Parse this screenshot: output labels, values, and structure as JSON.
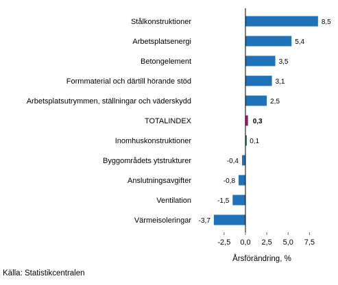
{
  "chart_data": {
    "type": "bar",
    "orientation": "horizontal",
    "categories": [
      "Stålkonstruktioner",
      "Arbetsplatsenergi",
      "Betongelement",
      "Formmaterial och därtill hörande stöd",
      "Arbetsplatsutrymmen, ställningar och väderskydd",
      "TOTALINDEX",
      "Inomhuskonstruktioner",
      "Byggområdets ytstrukturer",
      "Anslutningsavgifter",
      "Ventilation",
      "Värmeisoleringar"
    ],
    "values": [
      8.5,
      5.4,
      3.5,
      3.1,
      2.5,
      0.3,
      0.1,
      -0.4,
      -0.8,
      -1.5,
      -3.7
    ],
    "value_labels": [
      "8,5",
      "5,4",
      "3,5",
      "3,1",
      "2,5",
      "0,3",
      "0,1",
      "-0,4",
      "-0,8",
      "-1,5",
      "-3,7"
    ],
    "highlight_category": "TOTALINDEX",
    "xlabel": "Årsförändring, %",
    "xticks": [
      -2.5,
      0,
      2.5,
      5,
      7.5
    ],
    "xtick_labels": [
      "-2,5",
      "0,0",
      "2,5",
      "5,0",
      "7,5"
    ],
    "xlim": [
      -5.7,
      10.2
    ],
    "grid": false,
    "colors": {
      "bar": "#1f72b8",
      "highlight": "#a8176a",
      "axis": "#000000"
    }
  },
  "source": "Källa: Statistikcentralen"
}
